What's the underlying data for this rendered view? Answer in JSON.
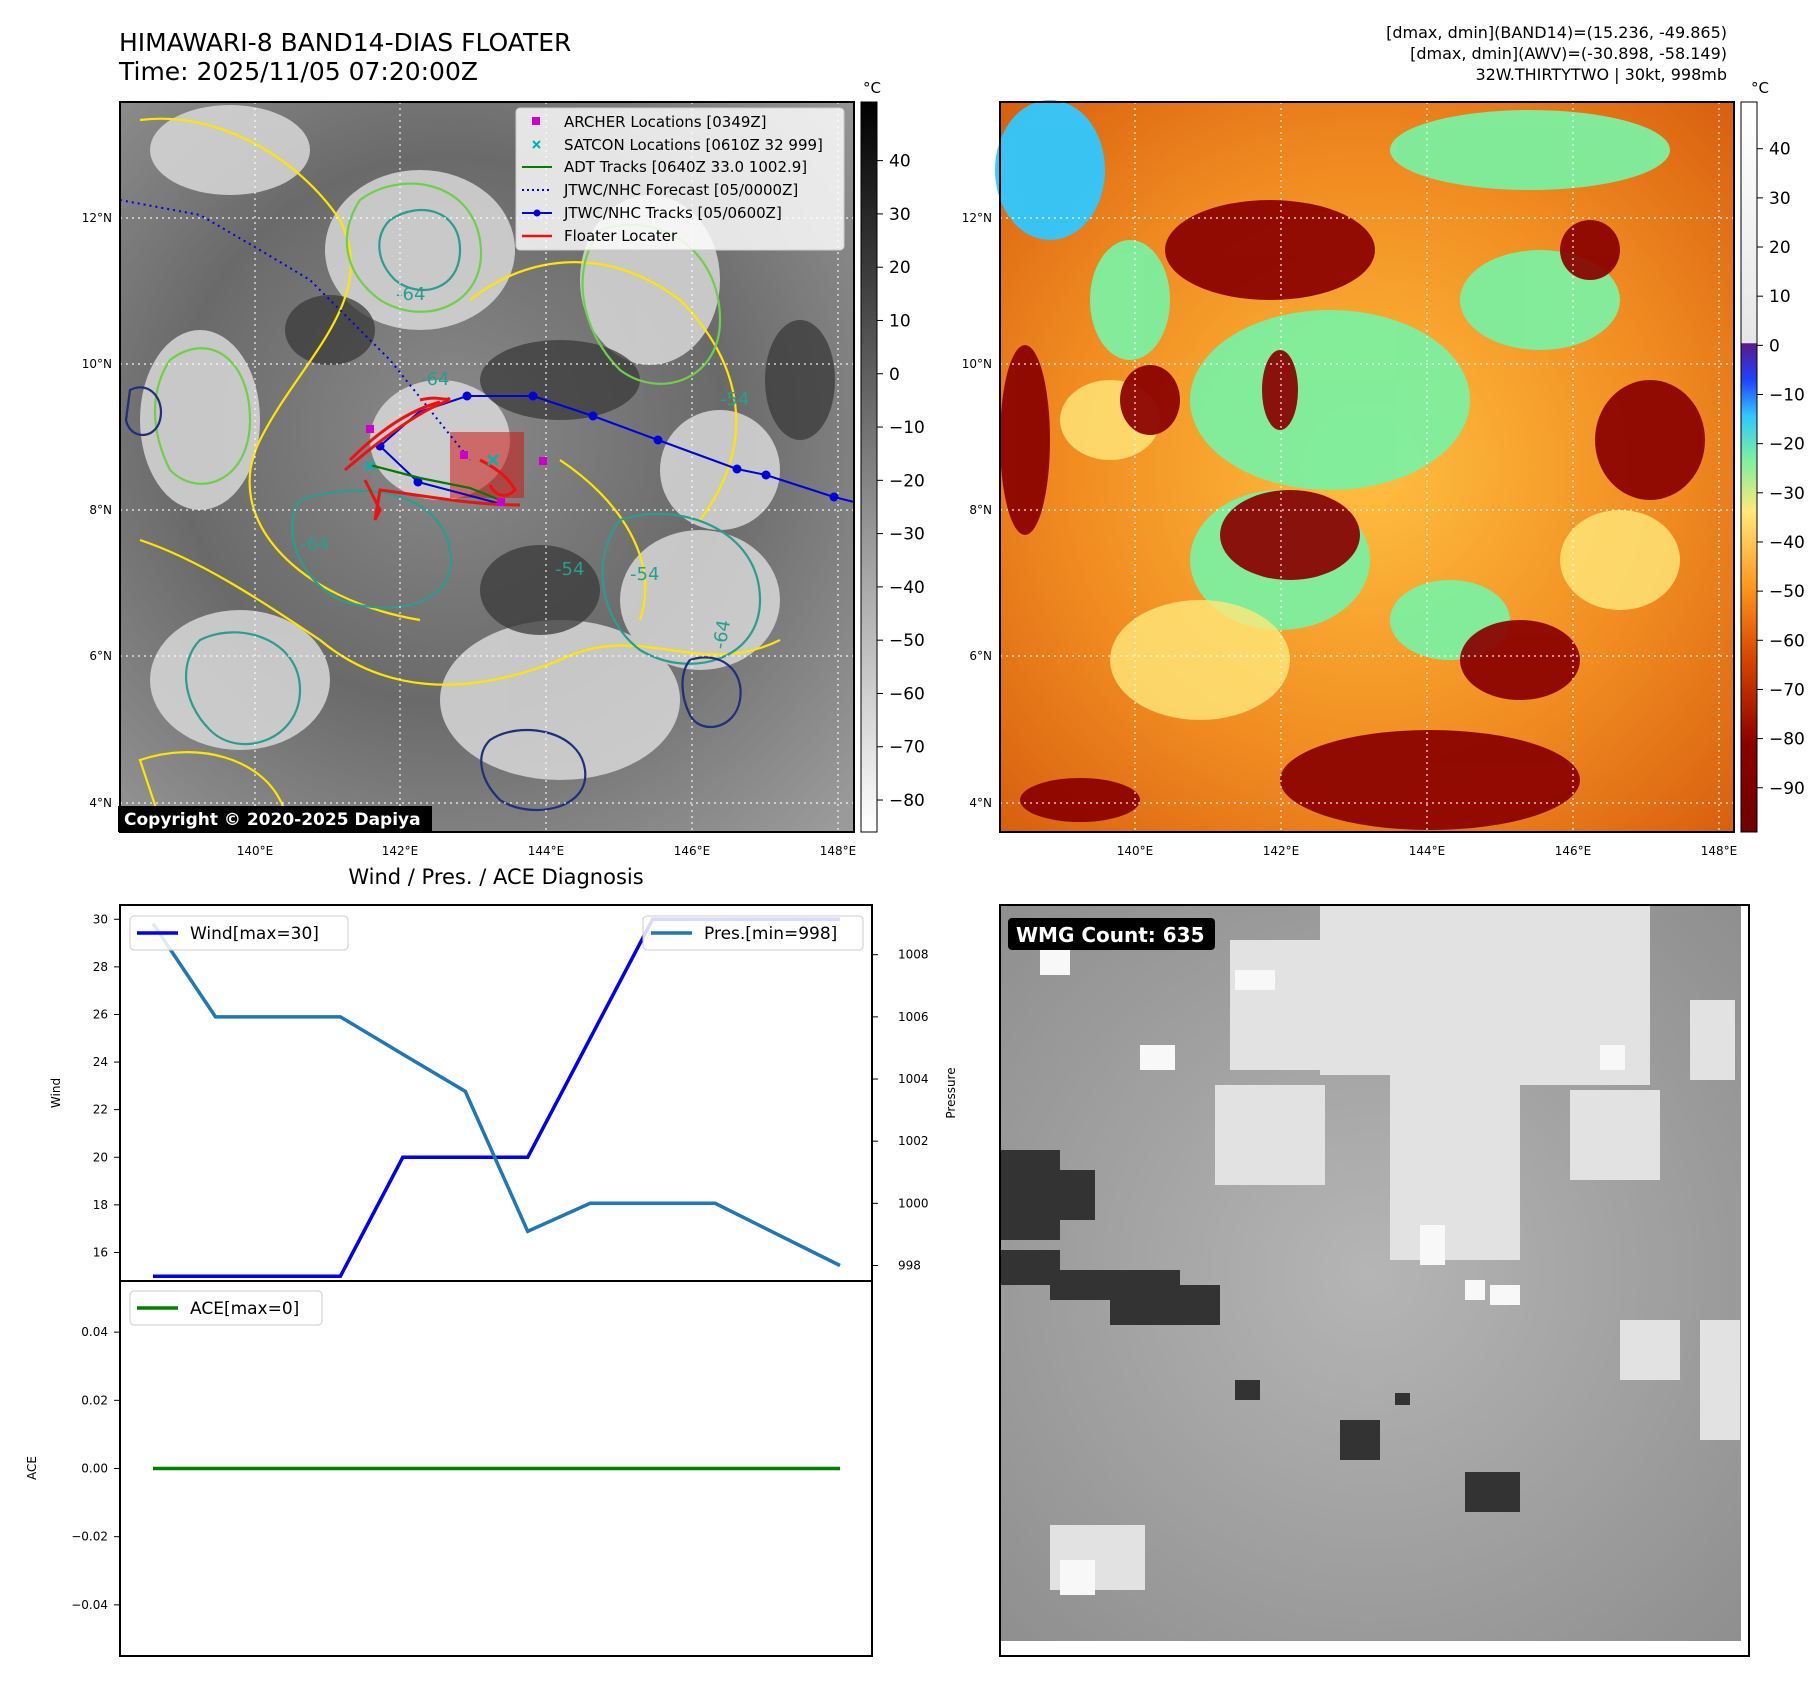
{
  "figure": {
    "title_line1": "HIMAWARI-8 BAND14-DIAS FLOATER",
    "title_line2": "Time: 2025/11/05 07:20:00Z",
    "info_line1": "[dmax, dmin](BAND14)=(15.236, -49.865)",
    "info_line2": "[dmax, dmin](AWV)=(-30.898, -58.149)",
    "info_line3": "32W.THIRTYTWO | 30kt, 998mb",
    "copyright": "Copyright © 2020-2025 Dapiya",
    "diagnosis_title": "Wind / Pres. / ACE Diagnosis",
    "wmg_count": "WMG Count: 635"
  },
  "colors": {
    "wind": "#0000ee",
    "pressure": "#1f77b4",
    "ace": "#008000",
    "archer": "#cc00cc",
    "satcon": "#00b3b3",
    "adt": "#007a00",
    "jtwc": "#0000dd",
    "floater": "#ee1111",
    "contour_yellow": "#ffe600",
    "contour_green": "#6fcf4a",
    "contour_teal": "#2a9d8f",
    "contour_navy": "#1f2f7a"
  },
  "map": {
    "lon_ticks": [
      "140°E",
      "142°E",
      "144°E",
      "146°E",
      "148°E"
    ],
    "lat_ticks": [
      "12°N",
      "10°N",
      "8°N",
      "6°N",
      "4°N"
    ],
    "contour_labels": [
      "-64",
      "-64",
      "-54",
      "-54",
      "-64",
      "-54",
      "-64"
    ],
    "legend": [
      {
        "label": "ARCHER Locations [0349Z]",
        "symbol": "square",
        "color": "#cc00cc"
      },
      {
        "label": "SATCON Locations [0610Z 32 999]",
        "symbol": "x",
        "color": "#00b3b3"
      },
      {
        "label": "ADT Tracks [0640Z 33.0 1002.9]",
        "symbol": "line",
        "color": "#007a00"
      },
      {
        "label": "JTWC/NHC Forecast [05/0000Z]",
        "symbol": "dotted",
        "color": "#0000dd"
      },
      {
        "label": "JTWC/NHC Tracks [05/0600Z]",
        "symbol": "line-dot",
        "color": "#0000dd"
      },
      {
        "label": "Floater Locater",
        "symbol": "line",
        "color": "#ee1111"
      }
    ]
  },
  "colorbars": {
    "unit": "°C",
    "gray_ticks": [
      "40",
      "30",
      "20",
      "10",
      "0",
      "−10",
      "−20",
      "−30",
      "−40",
      "−50",
      "−60",
      "−70",
      "−80"
    ],
    "color_ticks": [
      "40",
      "30",
      "20",
      "10",
      "0",
      "−10",
      "−20",
      "−30",
      "−40",
      "−50",
      "−60",
      "−70",
      "−80",
      "−90"
    ]
  },
  "chart_data": [
    {
      "type": "line",
      "title": "Wind / Pres. / ACE Diagnosis",
      "x": [
        0,
        1,
        2,
        3,
        4,
        5,
        6,
        7,
        8,
        9,
        10,
        11
      ],
      "ylabel": "Wind",
      "y2label": "Pressure",
      "ylim": [
        14.8,
        30.6
      ],
      "y2lim": [
        997.5,
        1009.6
      ],
      "y_ticks": [
        "16",
        "18",
        "20",
        "22",
        "24",
        "26",
        "28",
        "30"
      ],
      "y2_ticks": [
        "998",
        "1000",
        "1002",
        "1004",
        "1006",
        "1008"
      ],
      "series": [
        {
          "name": "Wind[max=30]",
          "axis": "left",
          "values": [
            15,
            15,
            15,
            15,
            20,
            20,
            20,
            25,
            30,
            30,
            30,
            30
          ]
        },
        {
          "name": "Pres.[min=998]",
          "axis": "right",
          "values": [
            1009,
            1006,
            1006,
            1006,
            1004.8,
            1003.6,
            999.1,
            1000,
            1000,
            1000,
            999,
            998
          ]
        }
      ]
    },
    {
      "type": "line",
      "x": [
        0,
        1,
        2,
        3,
        4,
        5,
        6,
        7,
        8,
        9,
        10,
        11
      ],
      "ylabel": "ACE",
      "ylim": [
        -0.055,
        0.055
      ],
      "y_ticks": [
        "0.04",
        "0.02",
        "0.00",
        "−0.02",
        "−0.04"
      ],
      "series": [
        {
          "name": "ACE[max=0]",
          "values": [
            0,
            0,
            0,
            0,
            0,
            0,
            0,
            0,
            0,
            0,
            0,
            0
          ]
        }
      ]
    }
  ]
}
